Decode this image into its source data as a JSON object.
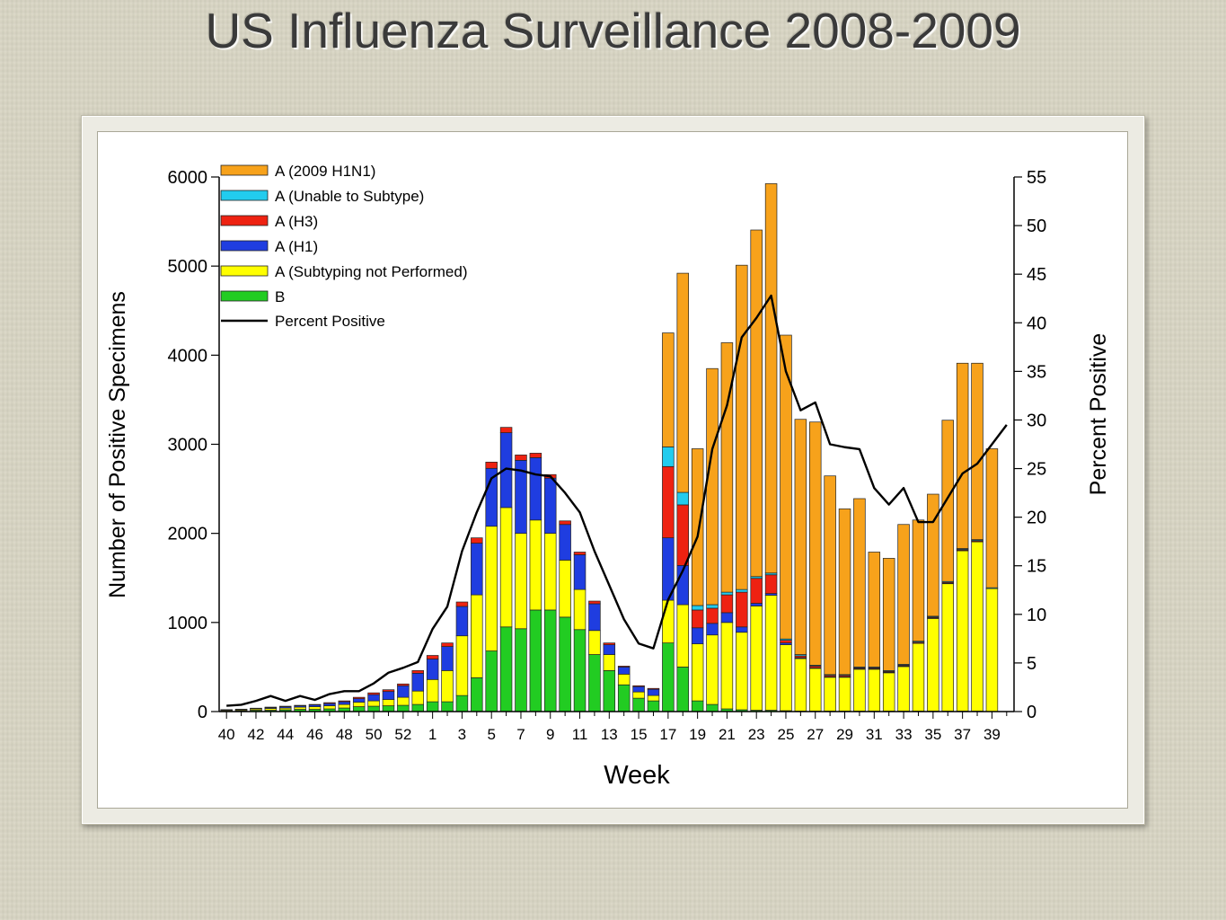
{
  "slide": {
    "title": "US Influenza Surveillance 2008-2009"
  },
  "chart_data": {
    "type": "bar",
    "stacked": true,
    "title": "",
    "xlabel": "Week",
    "ylabel": "Number of Positive Specimens",
    "y2label": "Percent Positive",
    "ylim": [
      0,
      6000
    ],
    "y2lim": [
      0,
      55
    ],
    "yticks": [
      0,
      1000,
      2000,
      3000,
      4000,
      5000,
      6000
    ],
    "y2ticks": [
      0,
      5,
      10,
      15,
      20,
      25,
      30,
      35,
      40,
      45,
      50,
      55
    ],
    "grid": false,
    "legend_position": "top-left",
    "categories": [
      "40",
      "41",
      "42",
      "43",
      "44",
      "45",
      "46",
      "47",
      "48",
      "49",
      "50",
      "51",
      "52",
      "53",
      "1",
      "2",
      "3",
      "4",
      "5",
      "6",
      "7",
      "8",
      "9",
      "10",
      "11",
      "12",
      "13",
      "14",
      "15",
      "16",
      "17",
      "18",
      "19",
      "20",
      "21",
      "22",
      "23",
      "24",
      "25",
      "26",
      "27",
      "28",
      "29",
      "30",
      "31",
      "32",
      "33",
      "34",
      "35",
      "36",
      "37",
      "38",
      "39",
      "40"
    ],
    "tick_labels": [
      "40",
      "42",
      "44",
      "46",
      "48",
      "50",
      "52",
      "1",
      "3",
      "5",
      "7",
      "9",
      "11",
      "13",
      "15",
      "17",
      "19",
      "21",
      "23",
      "25",
      "27",
      "29",
      "31",
      "33",
      "35",
      "37",
      "39"
    ],
    "series": [
      {
        "name": "B",
        "color": "#22cc22",
        "values": [
          5,
          10,
          15,
          15,
          20,
          25,
          25,
          30,
          40,
          55,
          60,
          65,
          70,
          80,
          110,
          110,
          180,
          380,
          680,
          950,
          930,
          1140,
          1140,
          1060,
          920,
          640,
          460,
          300,
          150,
          120,
          770,
          500,
          120,
          80,
          30,
          20,
          15,
          15,
          10,
          5,
          5,
          5,
          5,
          5,
          5,
          5,
          5,
          5,
          5,
          5,
          5,
          5,
          0,
          0
        ]
      },
      {
        "name": "A (Subtyping not Performed)",
        "color": "#ffff00",
        "values": [
          10,
          10,
          15,
          20,
          20,
          25,
          30,
          35,
          40,
          50,
          60,
          70,
          90,
          150,
          250,
          350,
          670,
          930,
          1400,
          1340,
          1070,
          1010,
          860,
          640,
          450,
          270,
          180,
          120,
          70,
          60,
          480,
          700,
          640,
          780,
          970,
          870,
          1170,
          1290,
          740,
          590,
          480,
          380,
          380,
          470,
          470,
          430,
          500,
          760,
          1040,
          1430,
          1800,
          1900,
          1380,
          0
        ]
      },
      {
        "name": "A (H1)",
        "color": "#1f3de0",
        "values": [
          5,
          5,
          5,
          10,
          15,
          15,
          20,
          25,
          30,
          40,
          70,
          90,
          130,
          200,
          230,
          270,
          330,
          580,
          650,
          840,
          820,
          700,
          620,
          400,
          390,
          300,
          110,
          80,
          60,
          70,
          700,
          440,
          180,
          130,
          110,
          60,
          30,
          20,
          20,
          10,
          5,
          5,
          5,
          5,
          5,
          5,
          5,
          5,
          5,
          5,
          5,
          5,
          0,
          0
        ]
      },
      {
        "name": "A (H3)",
        "color": "#ee2211",
        "values": [
          2,
          2,
          3,
          5,
          5,
          5,
          5,
          10,
          10,
          15,
          20,
          20,
          20,
          30,
          40,
          40,
          50,
          60,
          70,
          60,
          60,
          50,
          40,
          40,
          30,
          30,
          20,
          10,
          10,
          10,
          800,
          680,
          200,
          170,
          200,
          390,
          280,
          210,
          30,
          20,
          20,
          15,
          15,
          10,
          10,
          10,
          10,
          10,
          10,
          10,
          10,
          10,
          0,
          0
        ]
      },
      {
        "name": "A (Unable to Subtype)",
        "color": "#22ccee",
        "values": [
          0,
          0,
          0,
          0,
          0,
          0,
          0,
          0,
          0,
          0,
          0,
          0,
          0,
          0,
          0,
          0,
          0,
          0,
          0,
          0,
          0,
          0,
          0,
          0,
          0,
          0,
          0,
          0,
          0,
          0,
          220,
          140,
          50,
          40,
          30,
          30,
          20,
          20,
          15,
          15,
          10,
          10,
          10,
          10,
          10,
          10,
          10,
          10,
          10,
          10,
          10,
          10,
          10,
          0
        ]
      },
      {
        "name": "A (2009 H1N1)",
        "color": "#f7a21b",
        "values": [
          0,
          0,
          0,
          0,
          0,
          0,
          0,
          0,
          0,
          0,
          0,
          0,
          0,
          0,
          0,
          0,
          0,
          0,
          0,
          0,
          0,
          0,
          0,
          0,
          0,
          0,
          0,
          0,
          0,
          0,
          1280,
          2460,
          1760,
          2650,
          2800,
          3640,
          3890,
          4370,
          3410,
          2640,
          2730,
          2230,
          1860,
          1890,
          1290,
          1260,
          1570,
          1360,
          1370,
          1810,
          2080,
          1980,
          1560,
          0
        ]
      }
    ],
    "percent_positive": {
      "name": "Percent Positive",
      "color": "#000000",
      "values": [
        0.6,
        0.7,
        1.1,
        1.6,
        1.1,
        1.6,
        1.2,
        1.8,
        2.1,
        2.1,
        2.9,
        4.0,
        4.5,
        5.1,
        8.5,
        10.8,
        16.5,
        20.5,
        24.0,
        25.0,
        24.8,
        24.4,
        24.2,
        22.5,
        20.5,
        16.5,
        13.0,
        9.5,
        7.0,
        6.5,
        11.5,
        14.5,
        18.0,
        27.0,
        31.5,
        38.5,
        40.5,
        42.8,
        35.0,
        31.0,
        31.8,
        27.5,
        27.2,
        27.0,
        23.0,
        21.3,
        23.0,
        19.5,
        19.5,
        22.0,
        24.5,
        25.5,
        27.5,
        29.5
      ]
    }
  }
}
